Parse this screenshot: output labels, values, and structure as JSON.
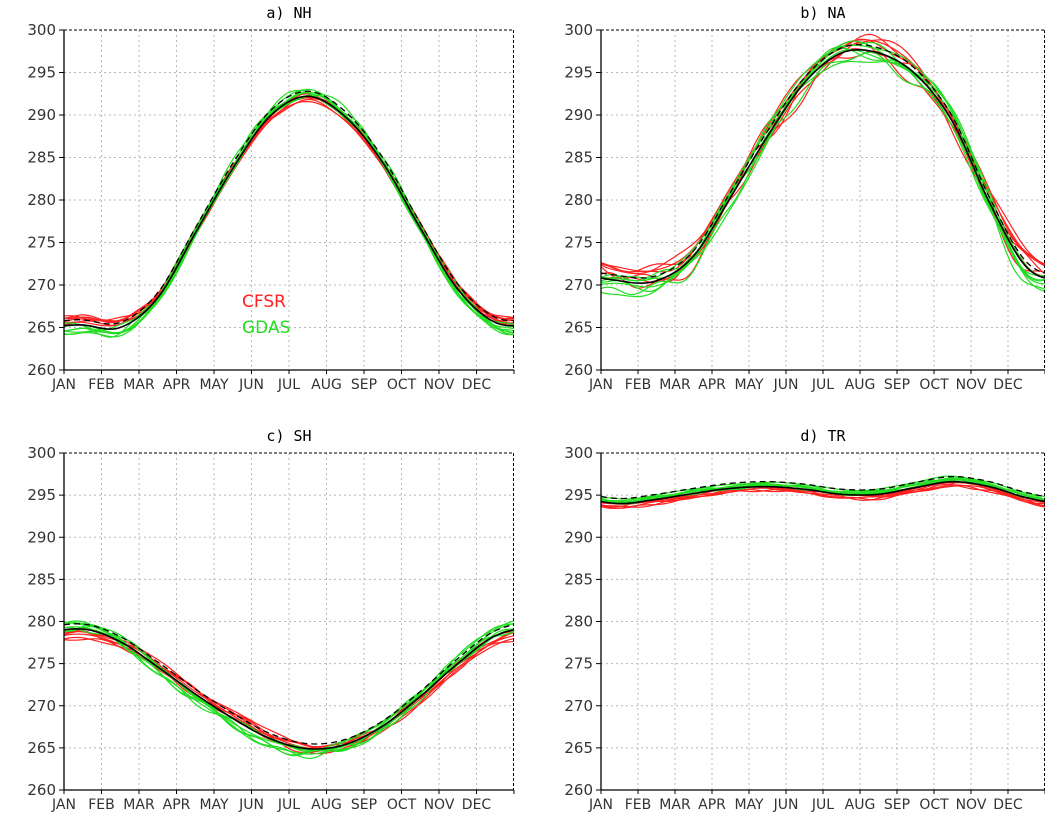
{
  "colors": {
    "cfsr": "#ff2020",
    "gdas": "#22dd22",
    "mean": "#000000",
    "grid": "#b8b8b8"
  },
  "chart_data": [
    {
      "type": "line",
      "title": "a) NH",
      "x": [
        "JAN",
        "FEB",
        "MAR",
        "APR",
        "MAY",
        "JUN",
        "JUL",
        "AUG",
        "SEP",
        "OCT",
        "NOV",
        "DEC"
      ],
      "ylim": [
        260,
        300
      ],
      "yticks": [
        "260",
        "265",
        "270",
        "275",
        "280",
        "285",
        "290",
        "295",
        "300"
      ],
      "legend": [
        {
          "name": "CFSR",
          "color": "#ff2020"
        },
        {
          "name": "GDAS",
          "color": "#22dd22"
        }
      ],
      "legend_position": "center-left",
      "grid": true,
      "series": [
        {
          "name": "CFSR",
          "values": [
            265.8,
            265.5,
            268.6,
            276.0,
            283.4,
            289.5,
            291.8,
            289.4,
            284.1,
            276.7,
            269.6,
            266.0
          ],
          "spread": 1.0
        },
        {
          "name": "GDAS",
          "values": [
            264.9,
            264.6,
            268.3,
            276.2,
            284.0,
            290.3,
            292.6,
            290.2,
            284.6,
            276.7,
            269.3,
            265.2
          ],
          "spread": 1.0
        },
        {
          "name": "mean",
          "values": [
            265.3,
            265.0,
            268.5,
            276.1,
            283.7,
            289.9,
            292.2,
            289.8,
            284.4,
            276.7,
            269.5,
            265.6
          ]
        }
      ]
    },
    {
      "type": "line",
      "title": "b) NA",
      "x": [
        "JAN",
        "FEB",
        "MAR",
        "APR",
        "MAY",
        "JUN",
        "JUL",
        "AUG",
        "SEP",
        "OCT",
        "NOV",
        "DEC"
      ],
      "ylim": [
        260,
        300
      ],
      "yticks": [
        "260",
        "265",
        "270",
        "275",
        "280",
        "285",
        "290",
        "295",
        "300"
      ],
      "grid": true,
      "series": [
        {
          "name": "CFSR",
          "values": [
            271.2,
            271.0,
            273.6,
            280.6,
            287.6,
            293.7,
            297.4,
            297.8,
            295.0,
            288.8,
            280.0,
            273.0
          ],
          "spread": 2.0
        },
        {
          "name": "GDAS",
          "values": [
            269.9,
            270.0,
            273.2,
            280.0,
            287.4,
            293.9,
            297.2,
            296.8,
            294.7,
            289.6,
            279.4,
            271.2
          ],
          "spread": 2.0
        },
        {
          "name": "mean",
          "values": [
            270.5,
            270.5,
            273.4,
            280.3,
            287.5,
            293.8,
            297.3,
            297.3,
            294.8,
            289.2,
            279.7,
            272.1
          ]
        }
      ]
    },
    {
      "type": "line",
      "title": "c) SH",
      "x": [
        "JAN",
        "FEB",
        "MAR",
        "APR",
        "MAY",
        "JUN",
        "JUL",
        "AUG",
        "SEP",
        "OCT",
        "NOV",
        "DEC"
      ],
      "ylim": [
        260,
        300
      ],
      "yticks": [
        "260",
        "265",
        "270",
        "275",
        "280",
        "285",
        "290",
        "295",
        "300"
      ],
      "grid": true,
      "series": [
        {
          "name": "CFSR",
          "values": [
            278.6,
            277.3,
            274.8,
            271.8,
            268.9,
            266.4,
            265.1,
            265.3,
            267.4,
            270.9,
            274.6,
            277.6
          ],
          "spread": 1.0
        },
        {
          "name": "GDAS",
          "values": [
            279.6,
            277.9,
            274.5,
            271.0,
            268.1,
            265.8,
            264.6,
            265.4,
            267.8,
            271.4,
            275.5,
            278.9
          ],
          "spread": 1.0
        },
        {
          "name": "mean",
          "values": [
            279.1,
            277.6,
            274.6,
            271.4,
            268.5,
            266.1,
            264.9,
            265.4,
            267.6,
            271.1,
            275.0,
            278.3
          ]
        }
      ]
    },
    {
      "type": "line",
      "title": "d) TR",
      "x": [
        "JAN",
        "FEB",
        "MAR",
        "APR",
        "MAY",
        "JUN",
        "JUL",
        "AUG",
        "SEP",
        "OCT",
        "NOV",
        "DEC"
      ],
      "ylim": [
        260,
        300
      ],
      "yticks": [
        "260",
        "265",
        "270",
        "275",
        "280",
        "285",
        "290",
        "295",
        "300"
      ],
      "grid": true,
      "series": [
        {
          "name": "CFSR",
          "values": [
            293.7,
            294.2,
            294.9,
            295.6,
            295.8,
            295.5,
            294.9,
            294.8,
            295.6,
            296.3,
            295.7,
            294.4
          ],
          "spread": 0.5
        },
        {
          "name": "GDAS",
          "values": [
            294.3,
            294.8,
            295.5,
            296.0,
            296.3,
            296.0,
            295.4,
            295.5,
            296.3,
            297.0,
            296.3,
            295.0
          ],
          "spread": 0.5
        },
        {
          "name": "mean",
          "values": [
            294.0,
            294.5,
            295.2,
            295.8,
            296.0,
            295.7,
            295.1,
            295.1,
            295.9,
            296.6,
            296.0,
            294.7
          ]
        }
      ]
    }
  ]
}
